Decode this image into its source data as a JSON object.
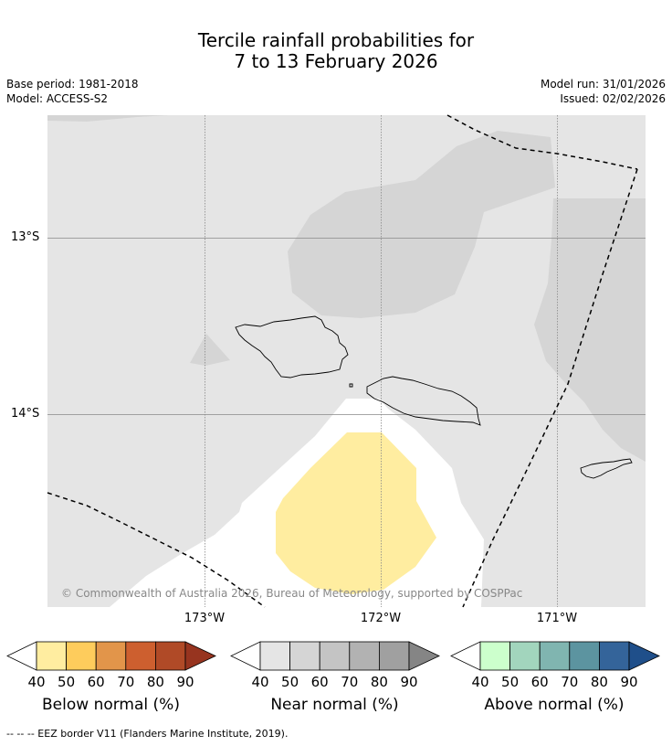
{
  "header": {
    "title_line1": "Tercile rainfall probabilities for",
    "title_line2": "7 to 13 February 2026",
    "base_period": "Base period: 1981-2018",
    "model": "Model: ACCESS-S2",
    "model_run": "Model run: 31/01/2026",
    "issued": "Issued: 02/02/2026"
  },
  "map": {
    "lon_labels": [
      "173°W",
      "172°W",
      "171°W"
    ],
    "lat_labels": [
      "13°S",
      "14°S"
    ],
    "copyright": "© Commonwealth of Australia 2026, Bureau of Meteorology, supported by COSPPac",
    "colors": {
      "ocean_near_normal_low": "#e5e5e5",
      "near_normal_50": "#d5d5d5",
      "below_40": "#ffeda0",
      "no_data": "#ffffff"
    }
  },
  "legends": [
    {
      "name": "below",
      "title": "Below normal (%)",
      "ticks": [
        "40",
        "50",
        "60",
        "70",
        "80",
        "90"
      ],
      "colors": [
        "#ffeda0",
        "#fecc5c",
        "#e2954a",
        "#cd5f2f",
        "#b04a27",
        "#97341f"
      ]
    },
    {
      "name": "near",
      "title": "Near normal (%)",
      "ticks": [
        "40",
        "50",
        "60",
        "70",
        "80",
        "90"
      ],
      "colors": [
        "#e5e5e5",
        "#d5d5d5",
        "#c4c4c4",
        "#b2b2b2",
        "#a0a0a0",
        "#858585"
      ]
    },
    {
      "name": "above",
      "title": "Above normal (%)",
      "ticks": [
        "40",
        "50",
        "60",
        "70",
        "80",
        "90"
      ],
      "colors": [
        "#ccffcc",
        "#a2d5bd",
        "#80b5b0",
        "#5c94a0",
        "#34649a",
        "#1f4f8a"
      ]
    }
  ],
  "footnote": "--  --  -- EEZ border V11 (Flanders Marine Institute, 2019)."
}
